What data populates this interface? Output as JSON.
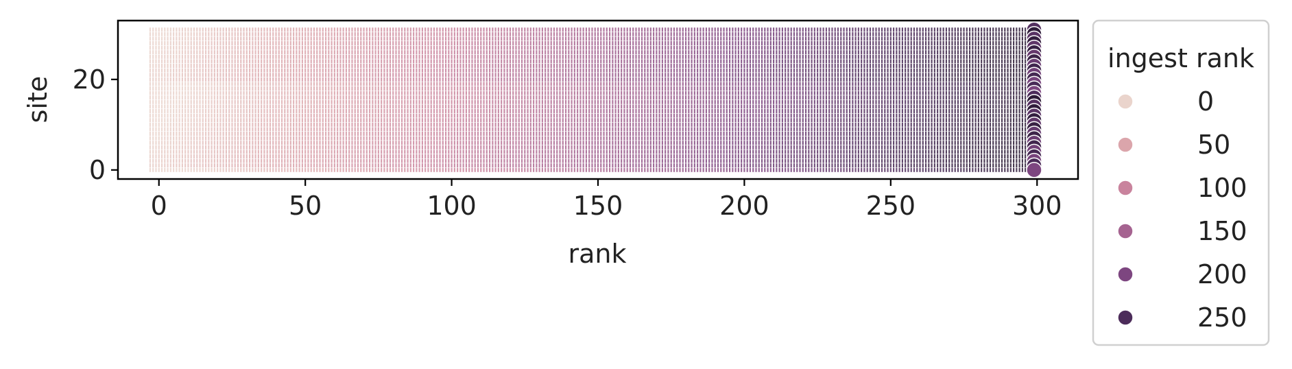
{
  "chart_data": {
    "type": "scatter",
    "xlabel": "rank",
    "ylabel": "site",
    "xlim": [
      -14,
      314
    ],
    "ylim": [
      -2,
      33
    ],
    "x_ticks": [
      0,
      50,
      100,
      150,
      200,
      250,
      300
    ],
    "y_ticks": [
      0,
      20
    ],
    "grid": false,
    "legend": {
      "title": "ingest rank",
      "placement": "outside-right",
      "entries": [
        {
          "label": "0",
          "value": 0,
          "color": "#ead4cc"
        },
        {
          "label": "50",
          "value": 50,
          "color": "#dba5ab"
        },
        {
          "label": "100",
          "value": 100,
          "color": "#c9839d"
        },
        {
          "label": "150",
          "value": 150,
          "color": "#a56390"
        },
        {
          "label": "200",
          "value": 200,
          "color": "#7d4680"
        },
        {
          "label": "250",
          "value": 250,
          "color": "#4c2c5a"
        }
      ]
    },
    "hue_range": [
      0,
      300
    ],
    "rank_range": [
      -3,
      299
    ],
    "site_range": [
      0,
      31
    ],
    "series_note_final_column_rank": 299
  }
}
